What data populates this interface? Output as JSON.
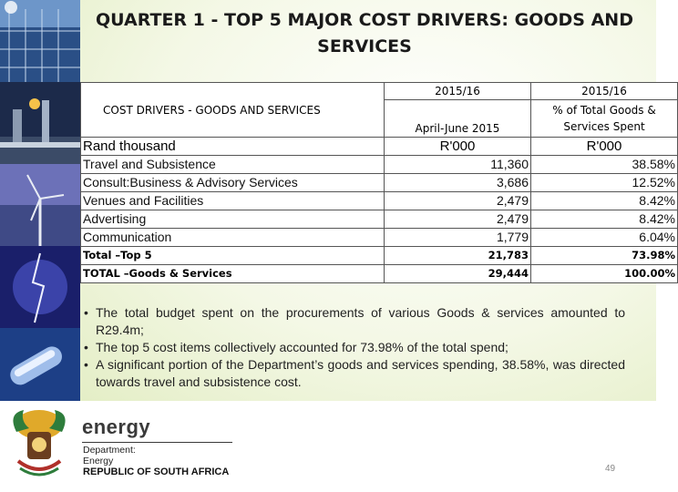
{
  "slide": {
    "title": "QUARTER 1 - TOP 5  MAJOR COST DRIVERS:  GOODS AND SERVICES",
    "page_number": "49"
  },
  "table": {
    "header_period_1": "2015/16",
    "header_period_2": "2015/16",
    "header_left": "COST DRIVERS - GOODS AND SERVICES",
    "header_sub_1": "April-June 2015",
    "header_sub_2": "% of Total Goods & Services Spent",
    "unit_label": "Rand thousand",
    "unit_1": "R'000",
    "unit_2": "R'000",
    "rows": [
      {
        "item": "Travel and Subsistence",
        "amount": "11,360",
        "pct": "38.58%"
      },
      {
        "item": "Consult:Business & Advisory Services",
        "amount": "3,686",
        "pct": "12.52%"
      },
      {
        "item": "Venues and Facilities",
        "amount": "2,479",
        "pct": "8.42%"
      },
      {
        "item": "Advertising",
        "amount": "2,479",
        "pct": "8.42%"
      },
      {
        "item": "Communication",
        "amount": "1,779",
        "pct": "6.04%"
      }
    ],
    "totals": [
      {
        "item": "Total –Top 5",
        "amount": "21,783",
        "pct": "73.98%"
      },
      {
        "item": "TOTAL –Goods & Services",
        "amount": "29,444",
        "pct": "100.00%"
      }
    ]
  },
  "notes": [
    "The total budget spent on the procurements of various Goods & services amounted to R29.4m;",
    "The top 5 cost items collectively accounted for 73.98% of the total spend;",
    "A significant portion of the Department’s goods and services spending, 38.58%, was directed towards  travel and subsistence cost."
  ],
  "footer": {
    "brand": "energy",
    "dept_line_1": "Department:",
    "dept_line_2": "Energy",
    "country": "REPUBLIC OF SOUTH AFRICA"
  },
  "colors": {
    "wash": "#e4eec6",
    "table_border": "#555555",
    "brand_text": "#3a3a3a"
  }
}
